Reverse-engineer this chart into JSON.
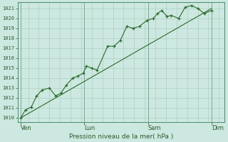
{
  "background_color": "#cce8e0",
  "plot_bg_color": "#cce8e0",
  "grid_color": "#aac8bc",
  "line_color": "#2d6a2d",
  "marker_color": "#2d6a2d",
  "trend_color": "#2d6a2d",
  "ylabel_ticks": [
    1010,
    1011,
    1012,
    1013,
    1014,
    1015,
    1016,
    1017,
    1018,
    1019,
    1020,
    1021
  ],
  "ylim": [
    1009.6,
    1021.6
  ],
  "xlabel": "Pression niveau de la mer( hPa )",
  "xtick_labels": [
    "Ven",
    "Lun",
    "Sam",
    "Dim"
  ],
  "xtick_positions": [
    0.0,
    3.0,
    6.0,
    9.0
  ],
  "xlim": [
    -0.15,
    9.6
  ],
  "num_cols": 18,
  "zigzag_data": [
    [
      0.0,
      1010.0
    ],
    [
      0.22,
      1010.8
    ],
    [
      0.5,
      1011.1
    ],
    [
      0.75,
      1012.2
    ],
    [
      1.0,
      1012.8
    ],
    [
      1.35,
      1013.0
    ],
    [
      1.65,
      1012.2
    ],
    [
      1.9,
      1012.5
    ],
    [
      2.15,
      1013.3
    ],
    [
      2.45,
      1014.0
    ],
    [
      2.7,
      1014.2
    ],
    [
      2.95,
      1014.5
    ],
    [
      3.1,
      1015.2
    ],
    [
      3.35,
      1015.0
    ],
    [
      3.6,
      1014.8
    ],
    [
      4.1,
      1017.2
    ],
    [
      4.4,
      1017.2
    ],
    [
      4.7,
      1017.8
    ],
    [
      5.0,
      1019.2
    ],
    [
      5.3,
      1019.0
    ],
    [
      5.6,
      1019.2
    ],
    [
      5.95,
      1019.8
    ],
    [
      6.25,
      1020.0
    ],
    [
      6.45,
      1020.5
    ],
    [
      6.65,
      1020.8
    ],
    [
      6.9,
      1020.2
    ],
    [
      7.1,
      1020.3
    ],
    [
      7.45,
      1020.0
    ],
    [
      7.75,
      1021.1
    ],
    [
      8.05,
      1021.3
    ],
    [
      8.35,
      1021.0
    ],
    [
      8.65,
      1020.5
    ],
    [
      9.0,
      1020.8
    ]
  ],
  "trend_data": [
    [
      0.0,
      1010.0
    ],
    [
      9.0,
      1021.0
    ]
  ],
  "vline_positions": [
    0.0,
    3.0,
    6.0,
    9.0
  ],
  "minor_vline_step": 0.5
}
